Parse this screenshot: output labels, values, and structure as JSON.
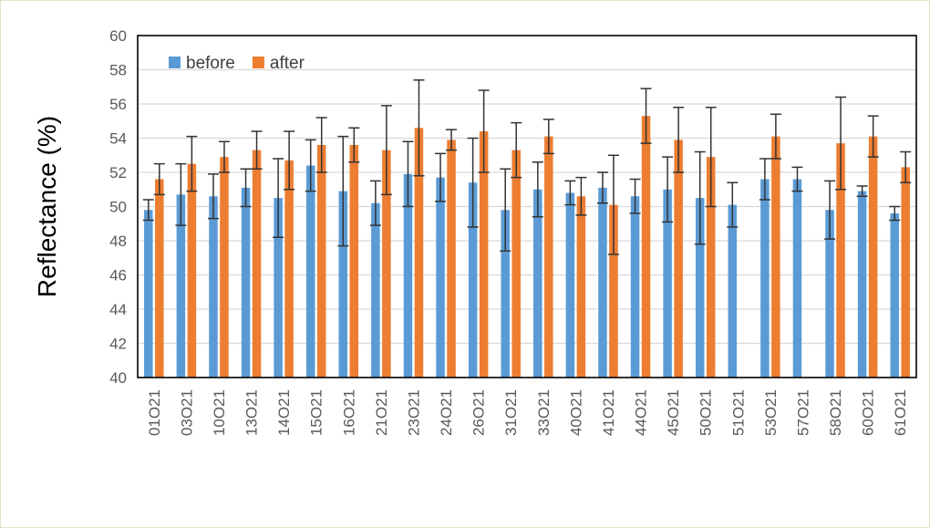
{
  "chart_data": {
    "type": "bar",
    "title": "",
    "xlabel": "",
    "ylabel": "Reflectance (%)",
    "ylim": [
      40,
      60
    ],
    "ytick_step": 2,
    "grid": true,
    "legend_position": "top-left",
    "categories": [
      "01O21",
      "03O21",
      "10O21",
      "13O21",
      "14O21",
      "15O21",
      "16O21",
      "21O21",
      "23O21",
      "24O21",
      "26O21",
      "31O21",
      "33O21",
      "40O21",
      "41O21",
      "44O21",
      "45O21",
      "50O21",
      "51O21",
      "53O21",
      "57O21",
      "58O21",
      "60O21",
      "61O21"
    ],
    "series": [
      {
        "name": "before",
        "color": "#5b9bd5",
        "values": [
          49.8,
          50.7,
          50.6,
          51.1,
          50.5,
          52.4,
          50.9,
          50.2,
          51.9,
          51.7,
          51.4,
          49.8,
          51.0,
          50.8,
          51.1,
          50.6,
          51.0,
          50.5,
          50.1,
          51.6,
          51.6,
          49.8,
          50.9,
          49.6
        ],
        "errors": [
          0.6,
          1.8,
          1.3,
          1.1,
          2.3,
          1.5,
          3.2,
          1.3,
          1.9,
          1.4,
          2.6,
          2.4,
          1.6,
          0.7,
          0.9,
          1.0,
          1.9,
          2.7,
          1.3,
          1.2,
          0.7,
          1.7,
          0.3,
          0.4
        ]
      },
      {
        "name": "after",
        "color": "#ed7d31",
        "values": [
          51.6,
          52.5,
          52.9,
          53.3,
          52.7,
          53.6,
          53.6,
          53.3,
          54.6,
          53.9,
          54.4,
          53.3,
          54.1,
          50.6,
          50.1,
          55.3,
          53.9,
          52.9,
          null,
          54.1,
          null,
          53.7,
          54.1,
          52.3
        ],
        "errors": [
          0.9,
          1.6,
          0.9,
          1.1,
          1.7,
          1.6,
          1.0,
          2.6,
          2.8,
          0.6,
          2.4,
          1.6,
          1.0,
          1.1,
          2.9,
          1.6,
          1.9,
          2.9,
          null,
          1.3,
          null,
          2.7,
          1.2,
          0.9
        ]
      }
    ]
  }
}
